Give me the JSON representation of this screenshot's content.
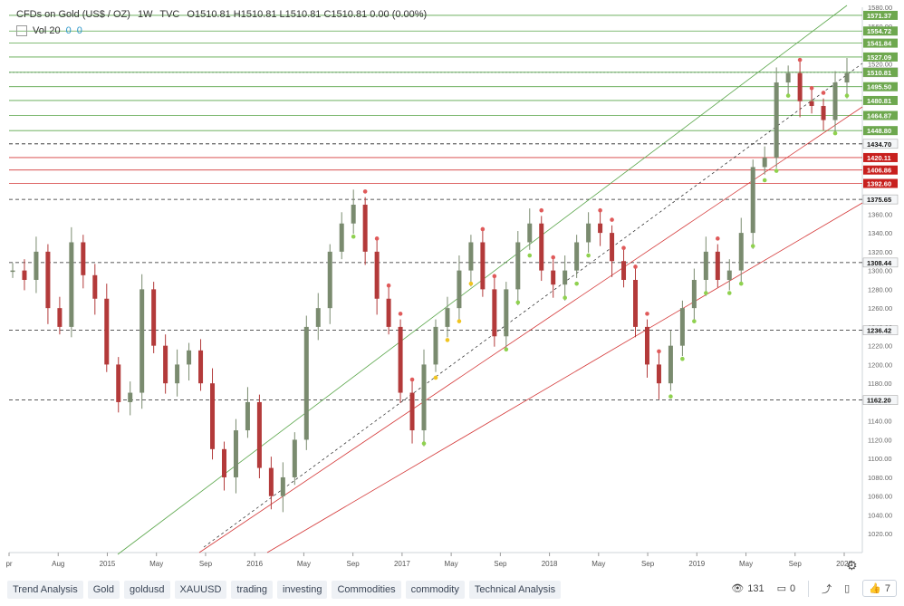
{
  "header": {
    "symbol": "CFDs on Gold (US$ / OZ)",
    "interval": "1W",
    "source": "TVC",
    "ohlc": "O1510.81 H1510.81 L1510.81 C1510.81 0.00 (0.00%)"
  },
  "volume": {
    "label": "Vol 20",
    "value_a": "0",
    "value_b": "0"
  },
  "colors": {
    "up": "#7a8b6f",
    "down": "#b33a3a",
    "green_line": "#5aa64a",
    "red_line": "#d43838",
    "dot_red": "#e05a5a",
    "dot_green": "#8fd14f",
    "dot_yellow": "#f0c420"
  },
  "chart_data": {
    "type": "line",
    "title": "CFDs on Gold (US$ / OZ) 1W TVC",
    "ylim": [
      1000,
      1580
    ],
    "y_ticks": [
      1020,
      1040,
      1060,
      1080,
      1100,
      1120,
      1140,
      1160,
      1180,
      1200,
      1220,
      1240,
      1260,
      1280,
      1300,
      1320,
      1340,
      1360,
      1520,
      1540,
      1560,
      1580
    ],
    "x_ticks": [
      "pr",
      "Aug",
      "2015",
      "May",
      "Sep",
      "2016",
      "May",
      "Sep",
      "2017",
      "May",
      "Sep",
      "2018",
      "May",
      "Sep",
      "2019",
      "May",
      "Sep",
      "2020"
    ],
    "price_trace": [
      1300,
      1290,
      1320,
      1260,
      1240,
      1330,
      1295,
      1270,
      1200,
      1160,
      1170,
      1280,
      1220,
      1180,
      1200,
      1215,
      1180,
      1110,
      1080,
      1130,
      1160,
      1090,
      1060,
      1080,
      1120,
      1240,
      1260,
      1320,
      1350,
      1370,
      1320,
      1270,
      1240,
      1170,
      1130,
      1200,
      1240,
      1260,
      1300,
      1330,
      1280,
      1230,
      1280,
      1330,
      1350,
      1300,
      1285,
      1300,
      1330,
      1350,
      1340,
      1310,
      1290,
      1240,
      1200,
      1180,
      1220,
      1260,
      1290,
      1320,
      1290,
      1300,
      1340,
      1410,
      1420,
      1500,
      1510,
      1480,
      1475,
      1460,
      1500,
      1510
    ],
    "horizontal_levels": [
      {
        "value": 1571.37,
        "label": "1571.37",
        "kind": "green"
      },
      {
        "value": 1554.72,
        "label": "1554.72",
        "kind": "green"
      },
      {
        "value": 1541.84,
        "label": "1541.84",
        "kind": "green"
      },
      {
        "value": 1527.09,
        "label": "1527.09",
        "kind": "green"
      },
      {
        "value": 1510.79,
        "label": "1510.79",
        "kind": "dark"
      },
      {
        "value": 1510.81,
        "label": "1510.81",
        "kind": "green"
      },
      {
        "value": 1495.5,
        "label": "1495.50",
        "kind": "green"
      },
      {
        "value": 1480.81,
        "label": "1480.81",
        "kind": "green"
      },
      {
        "value": 1464.87,
        "label": "1464.87",
        "kind": "green"
      },
      {
        "value": 1448.8,
        "label": "1448.80",
        "kind": "green"
      },
      {
        "value": 1434.7,
        "label": "1434.70",
        "kind": "dark_dashed"
      },
      {
        "value": 1420.11,
        "label": "1420.11",
        "kind": "red"
      },
      {
        "value": 1406.86,
        "label": "1406.86",
        "kind": "red"
      },
      {
        "value": 1392.6,
        "label": "1392.60",
        "kind": "red"
      },
      {
        "value": 1375.65,
        "label": "1375.65",
        "kind": "dark_dashed"
      },
      {
        "value": 1308.44,
        "label": "1308.44",
        "kind": "dark_dashed"
      },
      {
        "value": 1236.42,
        "label": "1236.42",
        "kind": "dark_dashed"
      },
      {
        "value": 1162.2,
        "label": "1162.20",
        "kind": "dark_dashed"
      }
    ]
  },
  "footer": {
    "tags": [
      "Trend Analysis",
      "Gold",
      "goldusd",
      "XAUUSD",
      "trading",
      "investing",
      "Commodities",
      "commodity",
      "Technical Analysis"
    ],
    "views": "131",
    "comments": "0",
    "likes": "7"
  }
}
